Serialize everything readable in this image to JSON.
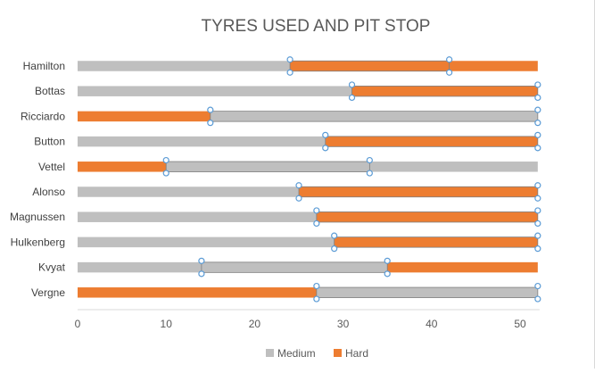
{
  "chart_data": {
    "type": "bar",
    "orientation": "horizontal",
    "stacked": true,
    "title": "TYRES USED AND PIT STOP",
    "xlabel": "",
    "ylabel": "",
    "xlim": [
      0,
      52
    ],
    "xticks": [
      0,
      10,
      20,
      30,
      40,
      50
    ],
    "grid": false,
    "legend_position": "bottom",
    "legend": [
      {
        "name": "Medium",
        "color": "#BFBFBF"
      },
      {
        "name": "Hard",
        "color": "#ED7D31"
      }
    ],
    "categories": [
      "Hamilton",
      "Bottas",
      "Ricciardo",
      "Button",
      "Vettel",
      "Alonso",
      "Magnussen",
      "Hulkenberg",
      "Kvyat",
      "Vergne"
    ],
    "stints": [
      [
        {
          "compound": "Medium",
          "from": 0,
          "to": 24
        },
        {
          "compound": "Hard",
          "from": 24,
          "to": 42
        },
        {
          "compound": "Hard",
          "from": 42,
          "to": 52
        }
      ],
      [
        {
          "compound": "Medium",
          "from": 0,
          "to": 31
        },
        {
          "compound": "Hard",
          "from": 31,
          "to": 52
        }
      ],
      [
        {
          "compound": "Hard",
          "from": 0,
          "to": 15
        },
        {
          "compound": "Medium",
          "from": 15,
          "to": 52
        }
      ],
      [
        {
          "compound": "Medium",
          "from": 0,
          "to": 28
        },
        {
          "compound": "Hard",
          "from": 28,
          "to": 52
        }
      ],
      [
        {
          "compound": "Hard",
          "from": 0,
          "to": 10
        },
        {
          "compound": "Medium",
          "from": 10,
          "to": 33
        },
        {
          "compound": "Medium",
          "from": 33,
          "to": 52
        }
      ],
      [
        {
          "compound": "Medium",
          "from": 0,
          "to": 25
        },
        {
          "compound": "Hard",
          "from": 25,
          "to": 52
        }
      ],
      [
        {
          "compound": "Medium",
          "from": 0,
          "to": 27
        },
        {
          "compound": "Hard",
          "from": 27,
          "to": 52
        }
      ],
      [
        {
          "compound": "Medium",
          "from": 0,
          "to": 29
        },
        {
          "compound": "Hard",
          "from": 29,
          "to": 52
        }
      ],
      [
        {
          "compound": "Medium",
          "from": 0,
          "to": 14
        },
        {
          "compound": "Medium",
          "from": 14,
          "to": 35
        },
        {
          "compound": "Hard",
          "from": 35,
          "to": 52
        }
      ],
      [
        {
          "compound": "Hard",
          "from": 0,
          "to": 27
        },
        {
          "compound": "Medium",
          "from": 27,
          "to": 52
        }
      ]
    ],
    "selected_series": [
      [
        {
          "from": 24,
          "to": 42
        }
      ],
      [
        {
          "from": 31,
          "to": 52
        }
      ],
      [
        {
          "from": 15,
          "to": 52
        }
      ],
      [
        {
          "from": 28,
          "to": 52
        }
      ],
      [
        {
          "from": 10,
          "to": 33
        }
      ],
      [
        {
          "from": 25,
          "to": 52
        }
      ],
      [
        {
          "from": 27,
          "to": 52
        }
      ],
      [
        {
          "from": 29,
          "to": 52
        }
      ],
      [
        {
          "from": 14,
          "to": 35
        }
      ],
      [
        {
          "from": 27,
          "to": 52
        }
      ]
    ]
  }
}
